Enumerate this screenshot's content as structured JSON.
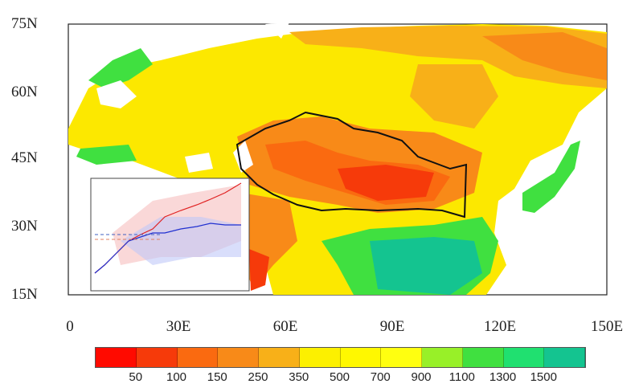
{
  "map": {
    "lat_labels": [
      "75N",
      "60N",
      "45N",
      "30N",
      "15N"
    ],
    "lon_labels": [
      "0",
      "30E",
      "60E",
      "90E",
      "120E",
      "150E"
    ],
    "inset": "time series inset (illegible small text)"
  },
  "colorbar": {
    "colors": [
      "#ff0a00",
      "#f63a0a",
      "#fa6a10",
      "#f88a18",
      "#f8b018",
      "#fcf000",
      "#fff800",
      "#ffff10",
      "#98f028",
      "#40e040",
      "#20e070",
      "#14c490"
    ],
    "labels": [
      "50",
      "100",
      "150",
      "250",
      "350",
      "500",
      "700",
      "900",
      "1100",
      "1300",
      "1500"
    ]
  }
}
